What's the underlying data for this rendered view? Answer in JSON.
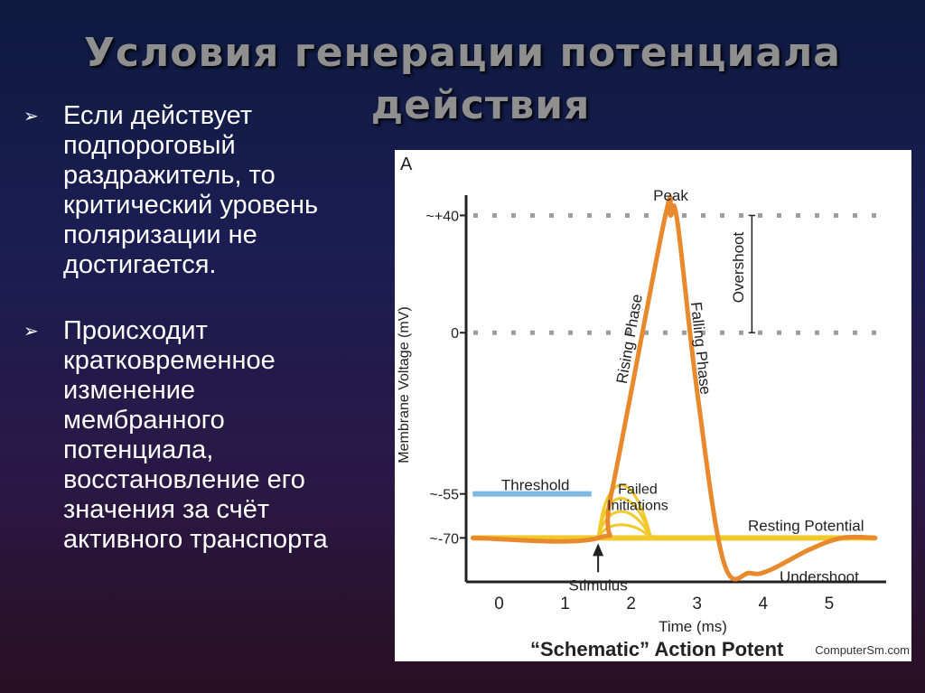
{
  "slide": {
    "title_line1": "Условия генерации потенциала",
    "title_line2": "действия",
    "bullets": [
      {
        "marker": "➢",
        "text": "Если действует подпороговый раздражитель, то критический уровень поляризации не достигается."
      },
      {
        "marker": "➢",
        "text": "Происходит кратковременное изменение мембранного потенциала, восстановление его значения за счёт активного транспорта"
      }
    ]
  },
  "chart_data": {
    "type": "line",
    "panel_label": "A",
    "title": "“Schematic” Action Potent",
    "credit": "ComputerSm.com",
    "xlabel": "Time (ms)",
    "ylabel": "Membrane Voltage (mV)",
    "xlim": [
      -1,
      5.2
    ],
    "ylim": [
      -85,
      50
    ],
    "x_ticks": [
      "0",
      "1",
      "2",
      "3",
      "4",
      "5"
    ],
    "y_ticks": [
      {
        "value": 40,
        "label": "~+40"
      },
      {
        "value": 0,
        "label": "0"
      },
      {
        "value": -55,
        "label": "~-55"
      },
      {
        "value": -70,
        "label": "~-70"
      }
    ],
    "colors": {
      "action_potential": "#e8892e",
      "threshold": "#7fb8e0",
      "resting": "#f2c92a",
      "failed": "#f2c92a",
      "dotted": "#9e9e9e",
      "axis": "#222222"
    },
    "series": [
      {
        "key": "action_potential",
        "x": [
          -0.9,
          1.0,
          1.2,
          2.0,
          2.1,
          2.2,
          2.5,
          2.9,
          3.3,
          3.6,
          4.2,
          4.7,
          5.2
        ],
        "y": [
          -70,
          -70,
          -55,
          38,
          40,
          38,
          -20,
          -78,
          -82,
          -81,
          -74,
          -70,
          -70
        ]
      },
      {
        "key": "resting",
        "label": "Resting Potential",
        "x": [
          -0.9,
          5.2
        ],
        "y": [
          -70,
          -70
        ]
      },
      {
        "key": "threshold",
        "label": "Threshold",
        "x": [
          -0.9,
          0.9
        ],
        "y": [
          -55,
          -55
        ]
      }
    ],
    "failed_initiations": {
      "label_line1": "Failed",
      "label_line2": "Initiations",
      "start": 1.0,
      "end": 1.8,
      "peaks": [
        -58,
        -61,
        -64,
        -67
      ]
    },
    "reference_lines": [
      40,
      0
    ],
    "annotations": {
      "peak": "Peak",
      "rising": "Rising Phase",
      "falling": "Falling Phase",
      "overshoot": "Overshoot",
      "undershoot": "Undershoot",
      "stimulus": "Stimulus",
      "stimulus_x": 1.0
    }
  }
}
